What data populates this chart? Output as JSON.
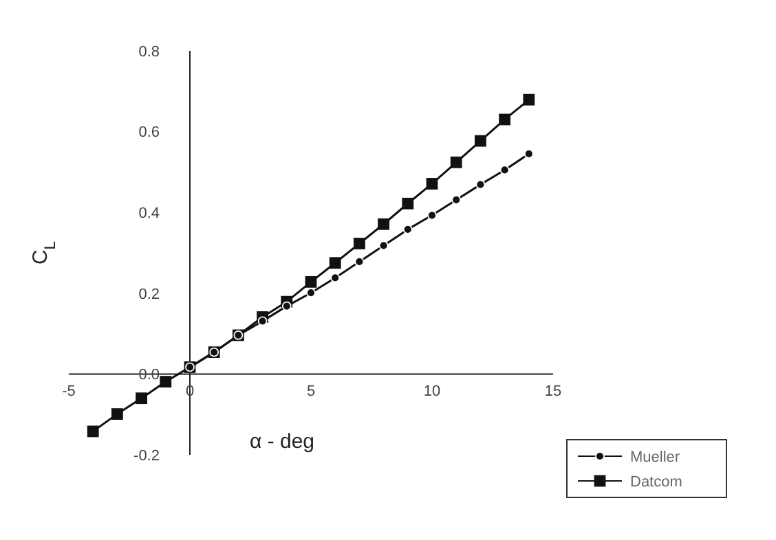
{
  "chart_data": {
    "type": "line",
    "xlabel": "α - deg",
    "ylabel": "C$_{L}$",
    "xlim": [
      -5,
      15
    ],
    "ylim": [
      -0.2,
      0.8
    ],
    "xticks": [
      -5,
      0,
      5,
      10,
      15
    ],
    "yticks": [
      {
        "value": -0.2,
        "label": "-0.2"
      },
      {
        "value": 0,
        "label": "0.0"
      },
      {
        "value": 0.2,
        "label": "0.2"
      },
      {
        "value": 0.4,
        "label": "0.4"
      },
      {
        "value": 0.6,
        "label": "0.6"
      },
      {
        "value": 0.8,
        "label": "0.8"
      }
    ],
    "grid": false,
    "legend": "bottom right",
    "line_style": "solid",
    "series": [
      {
        "name": "Mueller",
        "color": "#111111",
        "marker": "circle",
        "x": [
          0,
          1,
          2,
          3,
          4,
          5,
          6,
          7,
          8,
          9,
          10,
          11,
          12,
          13,
          14
        ],
        "values": [
          0.017,
          0.054,
          0.096,
          0.131,
          0.168,
          0.201,
          0.238,
          0.278,
          0.318,
          0.358,
          0.393,
          0.431,
          0.469,
          0.505,
          0.545
        ]
      },
      {
        "name": "Datcom",
        "color": "#111111",
        "marker": "square",
        "x": [
          -4,
          -3,
          -2,
          -1,
          0,
          1,
          2,
          3,
          4,
          5,
          6,
          7,
          8,
          9,
          10,
          11,
          12,
          13,
          14
        ],
        "values": [
          -0.142,
          -0.099,
          -0.06,
          -0.019,
          0.017,
          0.054,
          0.096,
          0.141,
          0.179,
          0.228,
          0.275,
          0.323,
          0.371,
          0.422,
          0.471,
          0.524,
          0.577,
          0.63,
          0.679
        ]
      }
    ]
  }
}
